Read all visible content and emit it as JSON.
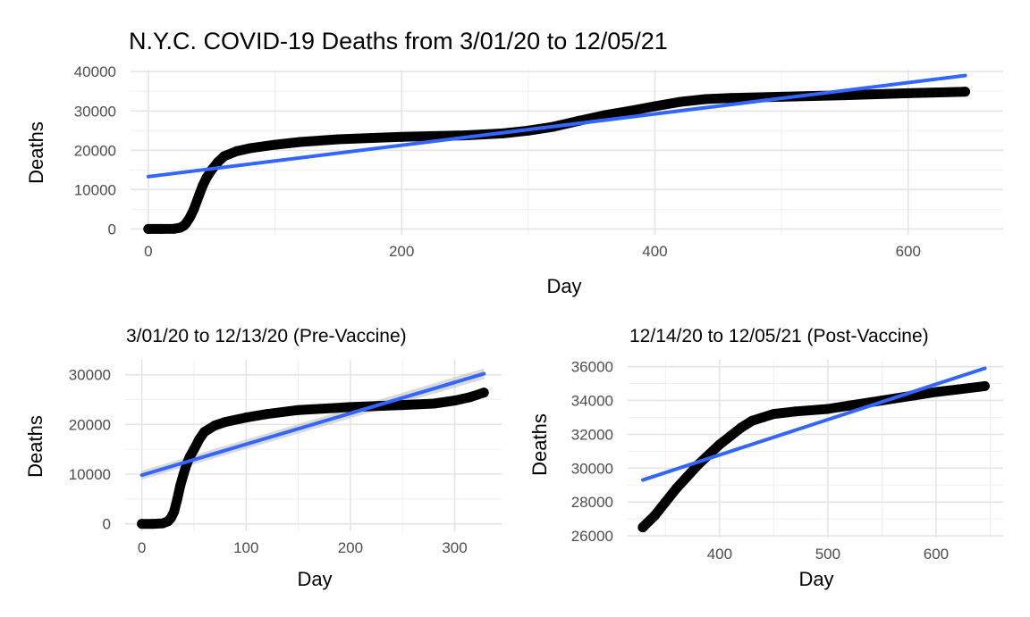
{
  "chart_data": [
    {
      "type": "scatter",
      "title": "N.Y.C. COVID-19 Deaths from 3/01/20 to 12/05/21",
      "xlabel": "Day",
      "ylabel": "Deaths",
      "xlim": [
        -14,
        675
      ],
      "ylim": [
        -1500,
        40500
      ],
      "xticks": [
        0,
        200,
        400,
        600
      ],
      "yticks": [
        0,
        10000,
        20000,
        30000,
        40000
      ],
      "grid": true,
      "series": [
        {
          "kind": "points",
          "color": "#000000",
          "x": [
            0,
            10,
            20,
            25,
            28,
            30,
            33,
            36,
            40,
            43,
            46,
            50,
            55,
            60,
            70,
            80,
            100,
            120,
            150,
            200,
            250,
            280,
            300,
            320,
            340,
            360,
            380,
            400,
            420,
            440,
            460,
            500,
            550,
            600,
            645
          ],
          "y": [
            0,
            0,
            30,
            300,
            800,
            1500,
            3000,
            5000,
            8500,
            11000,
            13000,
            15000,
            17000,
            18500,
            19800,
            20500,
            21400,
            22100,
            22800,
            23400,
            23800,
            24300,
            25000,
            26000,
            27500,
            28900,
            30000,
            31200,
            32300,
            33000,
            33300,
            33600,
            34000,
            34500,
            34900
          ]
        },
        {
          "kind": "linear-fit",
          "color": "#3366FF",
          "x": [
            0,
            645
          ],
          "y": [
            13300,
            39000
          ]
        }
      ]
    },
    {
      "type": "scatter",
      "title": "3/01/20 to 12/13/20 (Pre-Vaccine)",
      "xlabel": "Day",
      "ylabel": "Deaths",
      "xlim": [
        -16,
        345
      ],
      "ylim": [
        -1500,
        33000
      ],
      "xticks": [
        0,
        100,
        200,
        300
      ],
      "yticks": [
        0,
        10000,
        20000,
        30000
      ],
      "grid": true,
      "series": [
        {
          "kind": "points",
          "color": "#000000",
          "x": [
            0,
            10,
            20,
            25,
            28,
            31,
            34,
            37,
            40,
            43,
            46,
            50,
            55,
            60,
            70,
            80,
            100,
            120,
            150,
            200,
            250,
            280,
            300,
            315,
            328
          ],
          "y": [
            0,
            0,
            100,
            500,
            1200,
            2500,
            5000,
            7800,
            10000,
            12000,
            13500,
            15000,
            17000,
            18500,
            19800,
            20500,
            21400,
            22100,
            22900,
            23500,
            23900,
            24200,
            24800,
            25500,
            26400
          ]
        },
        {
          "kind": "linear-fit",
          "color": "#3366FF",
          "band_color": "#BBBBBB",
          "x": [
            0,
            328
          ],
          "y": [
            9800,
            30200
          ]
        }
      ]
    },
    {
      "type": "scatter",
      "title": "12/14/20 to 12/05/21 (Post-Vaccine)",
      "xlabel": "Day",
      "ylabel": "Deaths",
      "xlim": [
        315,
        662
      ],
      "ylim": [
        25900,
        36400
      ],
      "xticks": [
        400,
        500,
        600
      ],
      "yticks": [
        26000,
        28000,
        30000,
        32000,
        34000,
        36000
      ],
      "grid": true,
      "series": [
        {
          "kind": "points",
          "color": "#000000",
          "x": [
            329,
            340,
            350,
            360,
            370,
            380,
            390,
            400,
            410,
            420,
            430,
            440,
            450,
            470,
            500,
            520,
            550,
            580,
            600,
            620,
            645
          ],
          "y": [
            26500,
            27200,
            28000,
            28800,
            29500,
            30200,
            30800,
            31400,
            31900,
            32400,
            32800,
            33000,
            33200,
            33350,
            33500,
            33700,
            34000,
            34300,
            34500,
            34650,
            34850
          ]
        },
        {
          "kind": "linear-fit",
          "color": "#3366FF",
          "x": [
            329,
            645
          ],
          "y": [
            29300,
            35900
          ]
        }
      ]
    }
  ]
}
